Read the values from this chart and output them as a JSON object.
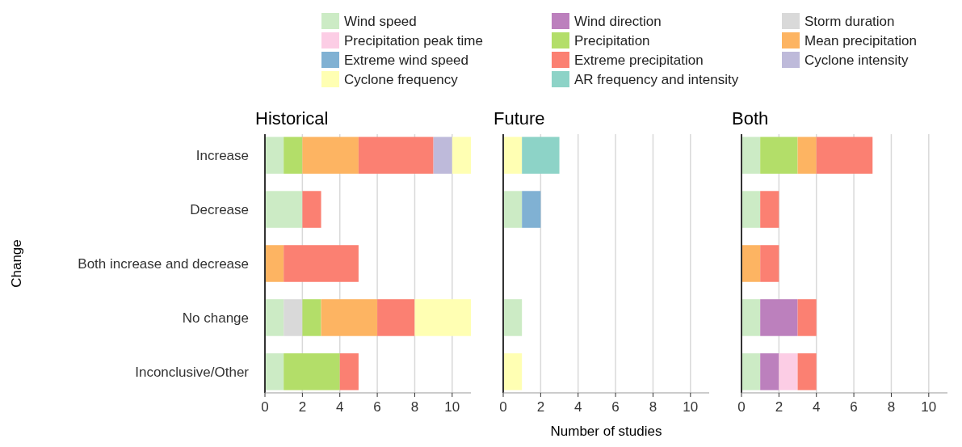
{
  "chart_data": [
    {
      "type": "bar",
      "orientation": "horizontal",
      "stacked": true,
      "title": "Historical",
      "ylabel": "Change",
      "legend": "top",
      "grid": "x",
      "xlim": [
        0,
        11
      ],
      "xticks": [
        0,
        2,
        4,
        6,
        8,
        10
      ],
      "categories": [
        "Increase",
        "Decrease",
        "Both increase and decrease",
        "No change",
        "Inconclusive/Other"
      ],
      "series": [
        {
          "name": "Wind speed",
          "color": "#ccebc5",
          "values": [
            1,
            2,
            null,
            1,
            1
          ]
        },
        {
          "name": "Wind direction",
          "color": "#bc80bd",
          "values": [
            null,
            null,
            null,
            null,
            null
          ]
        },
        {
          "name": "Storm duration",
          "color": "#d9d9d9",
          "values": [
            null,
            null,
            null,
            1,
            null
          ]
        },
        {
          "name": "Precipitation peak time",
          "color": "#fccde5",
          "values": [
            null,
            null,
            null,
            null,
            null
          ]
        },
        {
          "name": "Precipitation",
          "color": "#b3de69",
          "values": [
            1,
            null,
            null,
            1,
            3
          ]
        },
        {
          "name": "Mean precipitation",
          "color": "#fdb462",
          "values": [
            3,
            null,
            1,
            3,
            null
          ]
        },
        {
          "name": "Extreme wind speed",
          "color": "#80b1d3",
          "values": [
            null,
            null,
            null,
            null,
            null
          ]
        },
        {
          "name": "Extreme precipitation",
          "color": "#fb8072",
          "values": [
            4,
            1,
            4,
            2,
            1
          ]
        },
        {
          "name": "Cyclone intensity",
          "color": "#bebada",
          "values": [
            1,
            null,
            null,
            null,
            null
          ]
        },
        {
          "name": "Cyclone frequency",
          "color": "#ffffb3",
          "values": [
            1,
            null,
            null,
            3,
            null
          ]
        },
        {
          "name": "AR frequency and intensity",
          "color": "#8dd3c7",
          "values": [
            null,
            null,
            null,
            null,
            null
          ]
        }
      ]
    },
    {
      "type": "bar",
      "orientation": "horizontal",
      "stacked": true,
      "title": "Future",
      "xlabel": "Number of studies",
      "tick_labels": "x",
      "grid": "x",
      "xlim": [
        0,
        11
      ],
      "xticks": [
        0,
        2,
        4,
        6,
        8,
        10
      ],
      "series": [
        {
          "color": "#ccebc5",
          "values": [
            null,
            1,
            null,
            1,
            null
          ]
        },
        {
          "color": "#80b1d3",
          "values": [
            null,
            1,
            null,
            null,
            null
          ]
        },
        {
          "color": "#ffffb3",
          "values": [
            1,
            null,
            null,
            null,
            1
          ]
        },
        {
          "color": "#8dd3c7",
          "values": [
            2,
            null,
            null,
            null,
            null
          ]
        }
      ]
    },
    {
      "type": "bar",
      "orientation": "horizontal",
      "stacked": true,
      "title": "Both",
      "tick_labels": "x",
      "grid": "x",
      "xlim": [
        0,
        11
      ],
      "xticks": [
        0,
        2,
        4,
        6,
        8,
        10
      ],
      "series": [
        {
          "color": "#ccebc5",
          "values": [
            1,
            1,
            null,
            1,
            1
          ]
        },
        {
          "color": "#bc80bd",
          "values": [
            null,
            null,
            null,
            2,
            1
          ]
        },
        {
          "color": "#fccde5",
          "values": [
            null,
            null,
            null,
            null,
            1
          ]
        },
        {
          "color": "#b3de69",
          "values": [
            2,
            null,
            null,
            null,
            null
          ]
        },
        {
          "color": "#fdb462",
          "values": [
            1,
            null,
            1,
            null,
            null
          ]
        },
        {
          "color": "#fb8072",
          "values": [
            3,
            1,
            1,
            1,
            1
          ]
        }
      ]
    }
  ]
}
